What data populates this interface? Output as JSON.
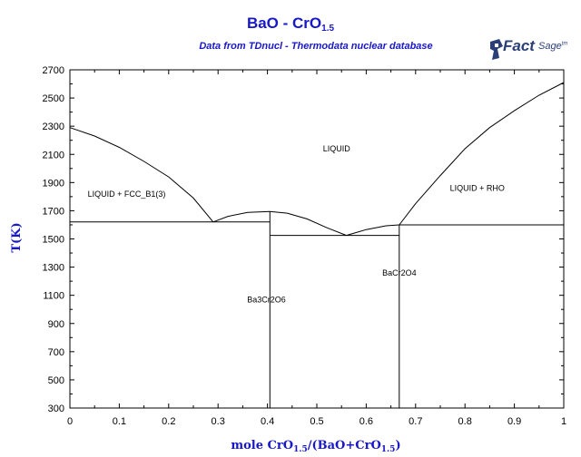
{
  "header": {
    "title_main": "BaO - CrO",
    "title_sub": "1.5",
    "subtitle": "Data from TDnucl - Thermodata nuclear database"
  },
  "logo": {
    "text_fact": "Fact",
    "text_sage": "Sage",
    "mark": "tm",
    "color": "#2a3f78"
  },
  "colors": {
    "title": "#1818c8",
    "lines": "#000000"
  },
  "chart_data": {
    "type": "line",
    "title": "BaO - CrO1.5",
    "subtitle": "Data from TDnucl - Thermodata nuclear database",
    "xlabel": "mole CrO1.5/(BaO+CrO1.5)",
    "xlabel_parts": [
      "mole CrO",
      "1.5",
      "/(BaO+CrO",
      "1.5",
      ")"
    ],
    "ylabel": "T(K)",
    "xlim": [
      0,
      1
    ],
    "ylim": [
      300,
      2700
    ],
    "xticks": [
      0,
      0.1,
      0.2,
      0.3,
      0.4,
      0.5,
      0.6,
      0.7,
      0.8,
      0.9,
      1
    ],
    "xtick_labels": [
      "0",
      "0.1",
      "0.2",
      "0.3",
      "0.4",
      "0.5",
      "0.6",
      "0.7",
      "0.8",
      "0.9",
      "1"
    ],
    "yticks": [
      300,
      500,
      700,
      900,
      1100,
      1300,
      1500,
      1700,
      1900,
      2100,
      2300,
      2500,
      2700
    ],
    "ytick_labels": [
      "300",
      "500",
      "700",
      "900",
      "1100",
      "1300",
      "1500",
      "1700",
      "1900",
      "2100",
      "2300",
      "2500",
      "2700"
    ],
    "grid": false,
    "series": [
      {
        "points": [
          [
            0,
            2290
          ],
          [
            0.05,
            2230
          ],
          [
            0.1,
            2150
          ],
          [
            0.15,
            2050
          ],
          [
            0.2,
            1940
          ],
          [
            0.25,
            1790
          ],
          [
            0.29,
            1620
          ]
        ]
      },
      {
        "points": [
          [
            0.29,
            1620
          ],
          [
            0.32,
            1660
          ],
          [
            0.36,
            1688
          ],
          [
            0.405,
            1695
          ],
          [
            0.44,
            1683
          ],
          [
            0.48,
            1642
          ],
          [
            0.52,
            1580
          ],
          [
            0.56,
            1525
          ]
        ]
      },
      {
        "points": [
          [
            0.56,
            1525
          ],
          [
            0.6,
            1566
          ],
          [
            0.64,
            1593
          ],
          [
            0.667,
            1600
          ]
        ]
      },
      {
        "points": [
          [
            0.667,
            1600
          ],
          [
            0.7,
            1750
          ],
          [
            0.75,
            1950
          ],
          [
            0.8,
            2140
          ],
          [
            0.85,
            2290
          ],
          [
            0.9,
            2410
          ],
          [
            0.95,
            2520
          ],
          [
            1.0,
            2610
          ]
        ]
      },
      {
        "points": [
          [
            0,
            1620
          ],
          [
            0.405,
            1620
          ]
        ]
      },
      {
        "points": [
          [
            0.405,
            1525
          ],
          [
            0.667,
            1525
          ]
        ]
      },
      {
        "points": [
          [
            0.667,
            1600
          ],
          [
            1.0,
            1600
          ]
        ]
      },
      {
        "points": [
          [
            0.405,
            300
          ],
          [
            0.405,
            1695
          ]
        ]
      },
      {
        "points": [
          [
            0.667,
            300
          ],
          [
            0.667,
            1600
          ]
        ]
      }
    ],
    "annotations": [
      {
        "text": "LIQUID",
        "x": 0.54,
        "y": 2120
      },
      {
        "text": "LIQUID + FCC_B1(3)",
        "x": 0.115,
        "y": 1800
      },
      {
        "text": "LIQUID + RHO",
        "x": 0.825,
        "y": 1840
      },
      {
        "text": "Ba3Cr2O6",
        "x": 0.398,
        "y": 1050
      },
      {
        "text": "BaCr2O4",
        "x": 0.667,
        "y": 1240
      }
    ]
  }
}
